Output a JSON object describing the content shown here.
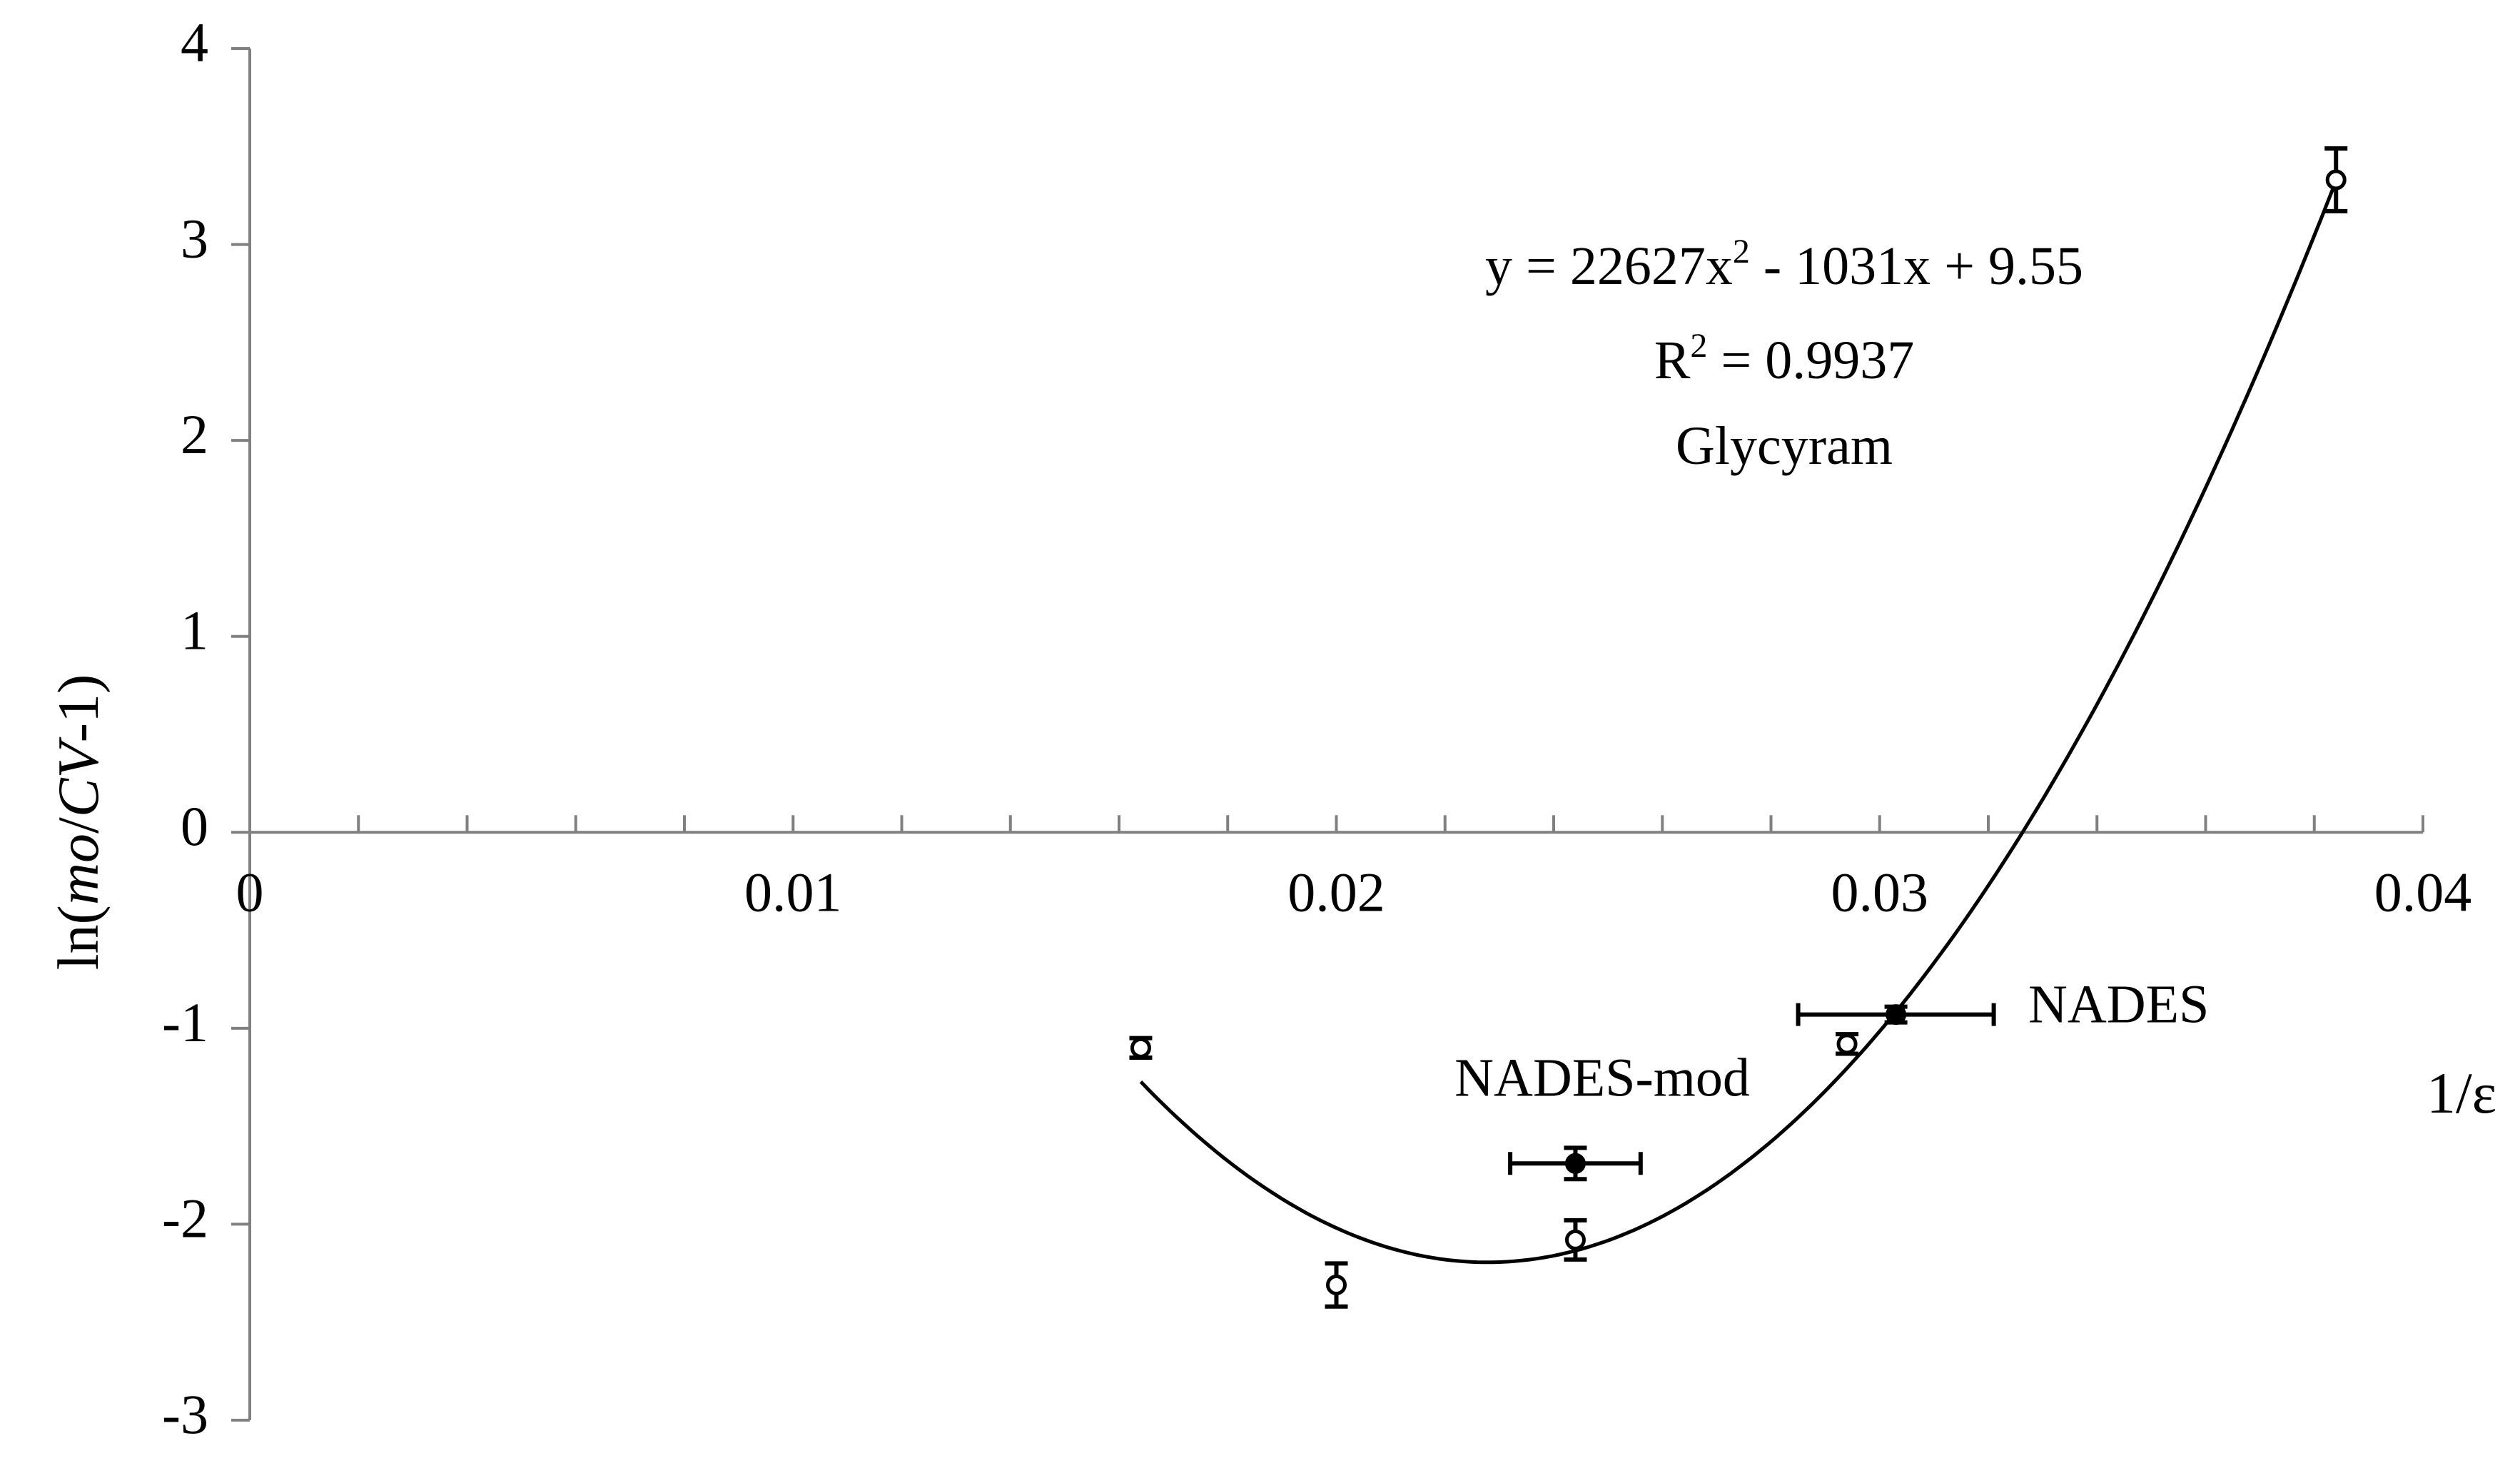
{
  "chart_data": {
    "type": "scatter",
    "title": "",
    "xlabel": "1/ε",
    "ylabel": {
      "prefix": "ln(",
      "italic": "mo",
      "slash": "/",
      "italic2": "CV",
      "suffix": "-1)"
    },
    "xlim": [
      0,
      0.04
    ],
    "ylim": [
      -3,
      4
    ],
    "x_ticks": [
      {
        "value": 0,
        "label": "0"
      },
      {
        "value": 0.01,
        "label": "0.01"
      },
      {
        "value": 0.02,
        "label": "0.02"
      },
      {
        "value": 0.03,
        "label": "0.03"
      },
      {
        "value": 0.04,
        "label": "0.04"
      }
    ],
    "x_minor_step": 0.002,
    "y_ticks": [
      {
        "value": 4,
        "label": "4"
      },
      {
        "value": 3,
        "label": "3"
      },
      {
        "value": 2,
        "label": "2"
      },
      {
        "value": 1,
        "label": "1"
      },
      {
        "value": 0,
        "label": "0"
      },
      {
        "value": -1,
        "label": "-1"
      },
      {
        "value": -2,
        "label": "-2"
      },
      {
        "value": -3,
        "label": "-3"
      }
    ],
    "grid": false,
    "series": [
      {
        "marker": "open-circle",
        "points": [
          {
            "x": 0.0164,
            "y": -1.1,
            "yerr": 0.05
          },
          {
            "x": 0.02,
            "y": -2.31,
            "yerr": 0.11
          },
          {
            "x": 0.0244,
            "y": -2.08,
            "yerr": 0.1
          },
          {
            "x": 0.0294,
            "y": -1.08,
            "yerr": 0.05
          },
          {
            "x": 0.0384,
            "y": 3.33,
            "yerr": 0.16
          }
        ]
      },
      {
        "marker": "filled-circle",
        "points": [
          {
            "x": 0.0244,
            "y": -1.69,
            "yerr": 0.08,
            "xerr": 0.0012,
            "label": "NADES-mod"
          },
          {
            "x": 0.0303,
            "y": -0.93,
            "yerr": 0.04,
            "xerr": 0.0018,
            "label": "NADES"
          }
        ]
      }
    ],
    "trendline": {
      "type": "polynomial",
      "coefficients": [
        22627,
        -1031,
        9.55
      ],
      "x_range": [
        0.0164,
        0.0384
      ],
      "equation": {
        "main": "y = 22627x",
        "sup": "2",
        "rest": " - 1031x + 9.55"
      },
      "r2": {
        "main": "R",
        "sup": "2",
        "rest": " = 0.9937"
      },
      "name": "Glycyram"
    },
    "colors": {
      "axis": "#808080",
      "ink": "#000000",
      "background": "#ffffff"
    }
  }
}
